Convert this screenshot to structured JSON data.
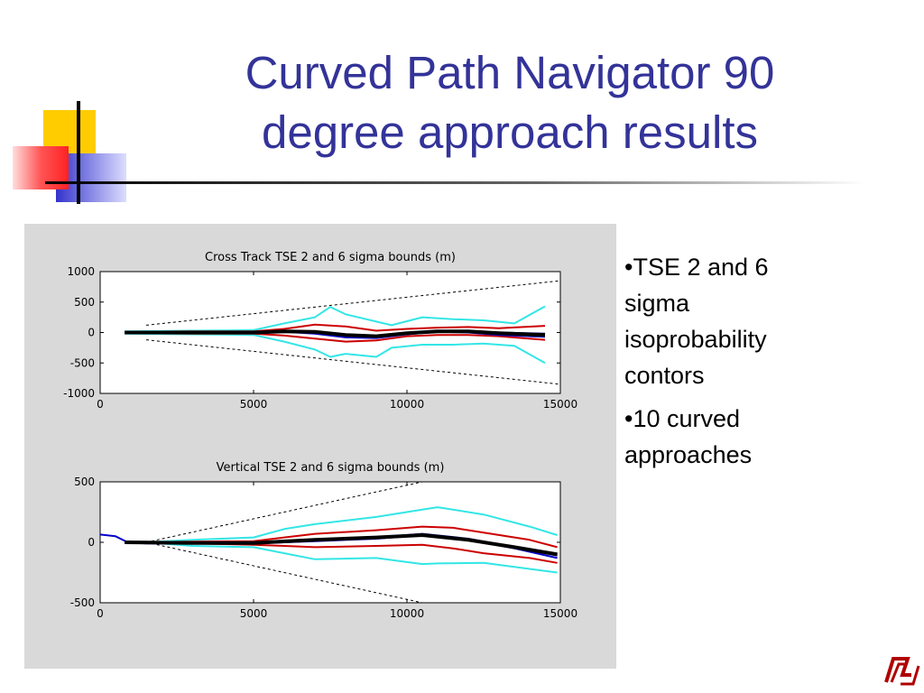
{
  "slide": {
    "title_line1": "Curved Path Navigator 90",
    "title_line2": "degree approach results",
    "bullets": [
      "•TSE 2 and 6\nsigma\nisoprobability\ncontors",
      "•10 curved\napproaches"
    ],
    "colors": {
      "title": "#333399",
      "deco_yellow": "#ffcc00",
      "deco_red": "#ff3333",
      "deco_blue": "#3333cc",
      "figure_bg": "#d9d9d9"
    },
    "logo_icon": "university-logo-icon"
  },
  "chart_data": [
    {
      "type": "line",
      "title": "Cross Track TSE 2 and 6 sigma bounds (m)",
      "xlim": [
        0,
        15000
      ],
      "ylim": [
        -1000,
        1000
      ],
      "xticks": [
        "0",
        "5000",
        "10000",
        "15000"
      ],
      "yticks": [
        "1000",
        "500",
        "0",
        "-500",
        "-1000"
      ],
      "grid": false,
      "series": [
        {
          "color": "#000000",
          "style": "dashed",
          "x": [
            1500,
            15000
          ],
          "y": [
            120,
            850
          ]
        },
        {
          "color": "#000000",
          "style": "dashed",
          "x": [
            1500,
            15000
          ],
          "y": [
            -120,
            -850
          ]
        },
        {
          "color": "#33e6e6",
          "x": [
            800,
            3000,
            5000,
            6000,
            7000,
            7500,
            8000,
            9000,
            9500,
            10500,
            11500,
            12500,
            13500,
            14500
          ],
          "y": [
            20,
            30,
            40,
            150,
            250,
            420,
            300,
            180,
            120,
            250,
            220,
            200,
            150,
            430
          ]
        },
        {
          "color": "#33e6e6",
          "x": [
            800,
            3000,
            5000,
            6000,
            7000,
            7500,
            8000,
            9000,
            9500,
            10500,
            11500,
            12500,
            13500,
            14500
          ],
          "y": [
            -20,
            -30,
            -40,
            -150,
            -280,
            -400,
            -350,
            -400,
            -250,
            -200,
            -200,
            -180,
            -220,
            -500
          ]
        },
        {
          "color": "#cc0000",
          "x": [
            800,
            3000,
            5000,
            6000,
            7000,
            8000,
            9000,
            10000,
            11000,
            12000,
            13000,
            14500
          ],
          "y": [
            10,
            20,
            20,
            60,
            130,
            100,
            30,
            60,
            80,
            90,
            70,
            110
          ]
        },
        {
          "color": "#cc0000",
          "x": [
            800,
            3000,
            5000,
            6000,
            7000,
            8000,
            9000,
            10000,
            11000,
            12000,
            13000,
            14500
          ],
          "y": [
            -10,
            -20,
            -20,
            -50,
            -100,
            -150,
            -130,
            -60,
            -40,
            -40,
            -60,
            -120
          ]
        },
        {
          "color": "#000080",
          "x": [
            800,
            3000,
            5000,
            6000,
            7000,
            8000,
            9000,
            10000,
            11000,
            12000,
            13000,
            14500
          ],
          "y": [
            0,
            0,
            0,
            30,
            20,
            -40,
            -60,
            -10,
            20,
            20,
            0,
            -20
          ]
        },
        {
          "color": "#0000cc",
          "x": [
            800,
            3000,
            5000,
            6000,
            7000,
            8000,
            9000,
            10000,
            11000,
            12000,
            13000,
            14500
          ],
          "y": [
            -10,
            -10,
            -10,
            10,
            -20,
            -80,
            -90,
            -30,
            10,
            0,
            -40,
            -70
          ]
        },
        {
          "color": "#000000",
          "width": 4,
          "x": [
            800,
            3000,
            5000,
            6000,
            7000,
            8000,
            9000,
            10000,
            11000,
            12000,
            13000,
            14500
          ],
          "y": [
            0,
            0,
            0,
            20,
            10,
            -40,
            -60,
            -10,
            20,
            20,
            -10,
            -40
          ]
        }
      ]
    },
    {
      "type": "line",
      "title": "Vertical TSE 2 and 6 sigma bounds (m)",
      "xlim": [
        0,
        15000
      ],
      "ylim": [
        -500,
        500
      ],
      "xticks": [
        "0",
        "5000",
        "10000",
        "15000"
      ],
      "yticks": [
        "500",
        "0",
        "-500"
      ],
      "grid": false,
      "series": [
        {
          "color": "#000000",
          "style": "dashed",
          "x": [
            1500,
            10500
          ],
          "y": [
            0,
            500
          ]
        },
        {
          "color": "#000000",
          "style": "dashed",
          "x": [
            1500,
            10500
          ],
          "y": [
            0,
            -500
          ]
        },
        {
          "color": "#33e6e6",
          "x": [
            800,
            1500,
            3000,
            5000,
            6000,
            7000,
            9000,
            10500,
            11000,
            12500,
            14000,
            14900
          ],
          "y": [
            0,
            0,
            20,
            40,
            110,
            150,
            210,
            270,
            290,
            230,
            130,
            60
          ]
        },
        {
          "color": "#33e6e6",
          "x": [
            800,
            1500,
            3000,
            5000,
            6000,
            7000,
            9000,
            10500,
            11000,
            12500,
            14000,
            14900
          ],
          "y": [
            0,
            0,
            -30,
            -40,
            -90,
            -140,
            -130,
            -180,
            -175,
            -170,
            -220,
            -250
          ]
        },
        {
          "color": "#cc0000",
          "x": [
            800,
            3000,
            5000,
            6000,
            7000,
            9000,
            10500,
            11500,
            12500,
            14000,
            14900
          ],
          "y": [
            0,
            5,
            10,
            40,
            70,
            100,
            130,
            120,
            80,
            20,
            -40
          ]
        },
        {
          "color": "#cc0000",
          "x": [
            800,
            3000,
            5000,
            6000,
            7000,
            9000,
            10500,
            11500,
            12500,
            14000,
            14900
          ],
          "y": [
            0,
            -10,
            -20,
            -30,
            -40,
            -30,
            -20,
            -50,
            -90,
            -130,
            -170
          ]
        },
        {
          "color": "#000080",
          "x": [
            800,
            3000,
            5000,
            7000,
            9000,
            10500,
            12000,
            13500,
            14900
          ],
          "y": [
            0,
            0,
            0,
            20,
            40,
            70,
            30,
            -40,
            -110
          ]
        },
        {
          "color": "#0000cc",
          "x": [
            -200,
            500,
            900,
            1500,
            3000,
            5000,
            7000,
            9000,
            10500,
            12000,
            13500,
            14900
          ],
          "y": [
            70,
            50,
            0,
            -10,
            -10,
            -10,
            10,
            30,
            60,
            20,
            -50,
            -130
          ]
        },
        {
          "color": "#000000",
          "width": 4,
          "x": [
            800,
            3000,
            5000,
            7000,
            9000,
            10500,
            12000,
            13500,
            14900
          ],
          "y": [
            0,
            -5,
            -5,
            20,
            40,
            60,
            20,
            -40,
            -100
          ]
        }
      ]
    }
  ]
}
